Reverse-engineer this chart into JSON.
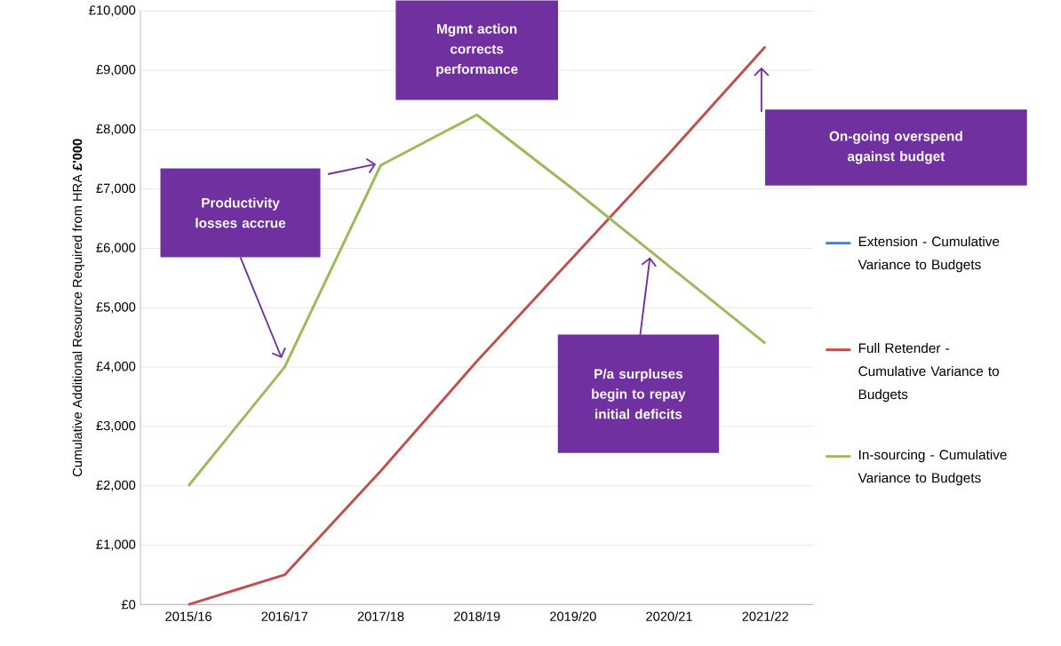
{
  "chart_data": {
    "type": "line",
    "ylabel": "Cumulative Additional Resource Required from HRA **£'000**",
    "categories": [
      "2015/16",
      "2016/17",
      "2017/18",
      "2018/19",
      "2019/20",
      "2020/21",
      "2021/22"
    ],
    "series": [
      {
        "name": "Extension - Cumulative Variance to Budgets",
        "color": "#4f81bd",
        "values": [
          null,
          null,
          null,
          null,
          null,
          null,
          null
        ]
      },
      {
        "name": "Full Retender - Cumulative Variance to Budgets",
        "color": "#c0504d",
        "values": [
          0,
          500,
          2250,
          4100,
          5850,
          7600,
          9400
        ]
      },
      {
        "name": "In-sourcing - Cumulative Variance to Budgets",
        "color": "#9bbb59",
        "values": [
          2000,
          4000,
          7400,
          8250,
          7000,
          5700,
          4400
        ]
      }
    ],
    "ylim": [
      0,
      10000
    ],
    "yticks": [
      {
        "value": 0,
        "label": "£0"
      },
      {
        "value": 1000,
        "label": "£1,000"
      },
      {
        "value": 2000,
        "label": "£2,000"
      },
      {
        "value": 3000,
        "label": "£3,000"
      },
      {
        "value": 4000,
        "label": "£4,000"
      },
      {
        "value": 5000,
        "label": "£5,000"
      },
      {
        "value": 6000,
        "label": "£6,000"
      },
      {
        "value": 7000,
        "label": "£7,000"
      },
      {
        "value": 8000,
        "label": "£8,000"
      },
      {
        "value": 9000,
        "label": "£9,000"
      },
      {
        "value": 10000,
        "label": "£10,000"
      }
    ],
    "grid": "y",
    "legend": "right",
    "line_style": "solid",
    "annotations": [
      "Productivity losses accrue",
      "Mgmt action corrects performance",
      "On-going overspend against budget",
      "P/a surpluses begin to repay initial deficits"
    ]
  }
}
